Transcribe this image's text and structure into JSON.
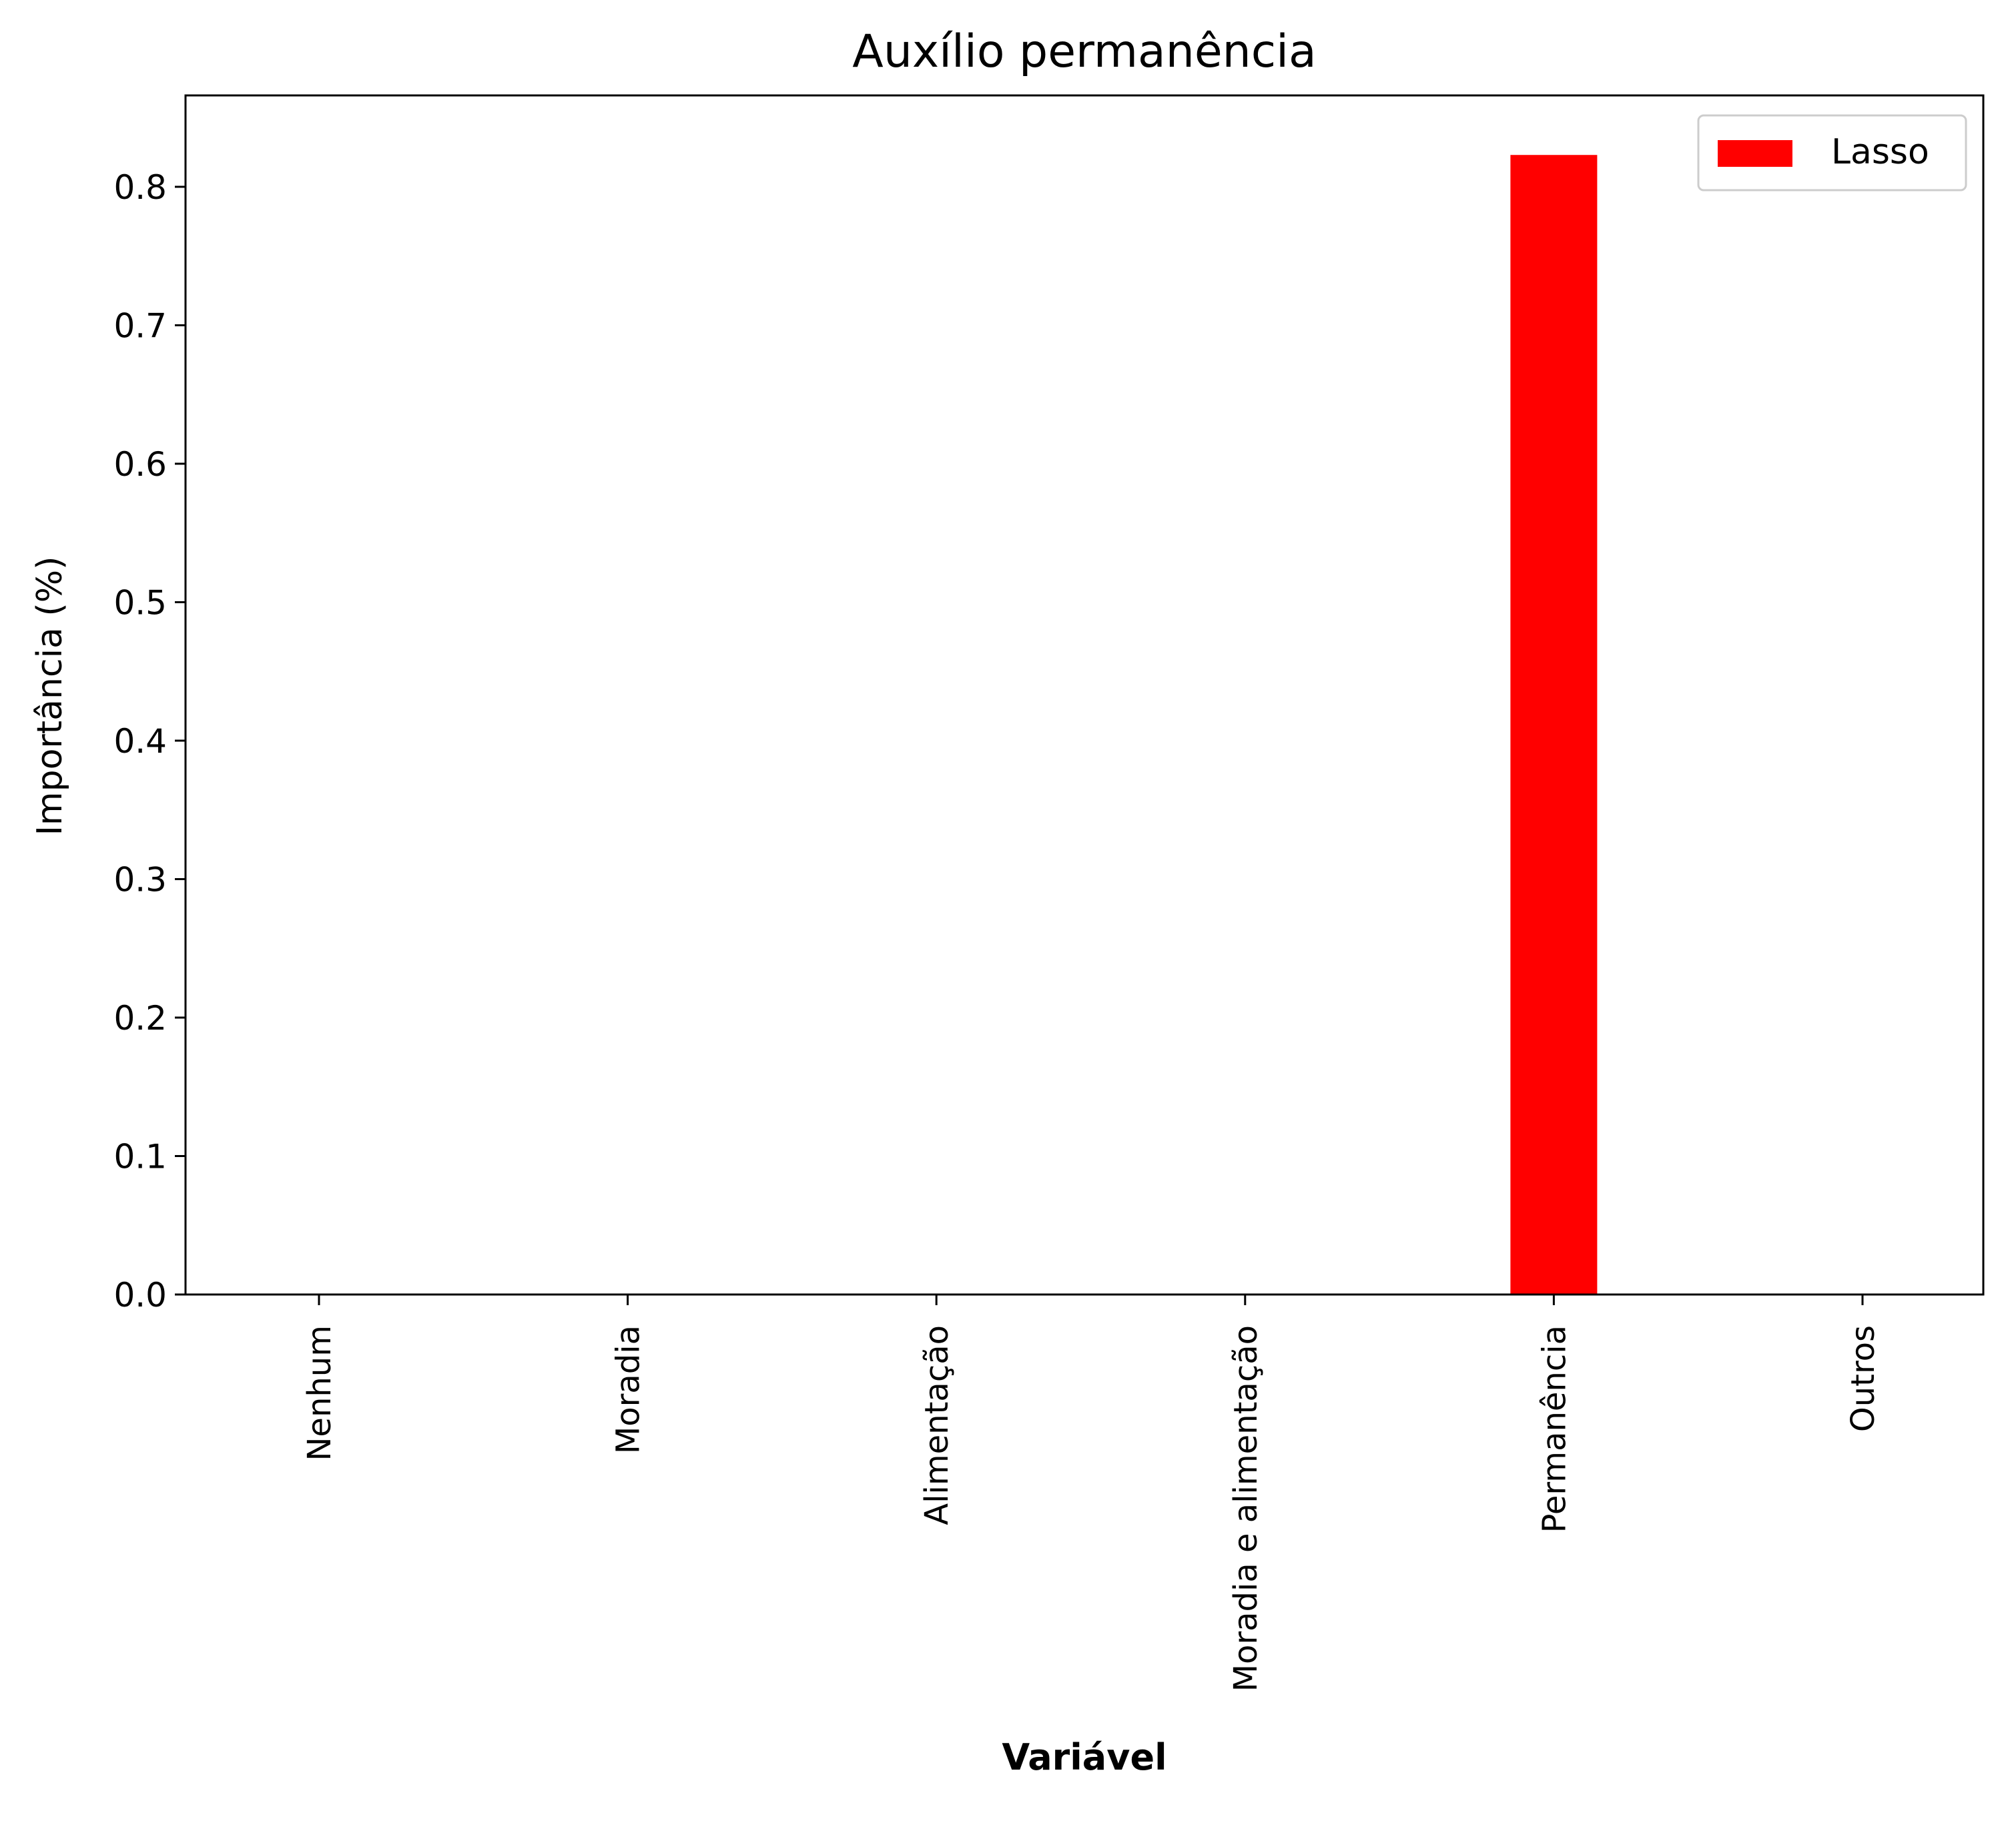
{
  "chart_data": {
    "type": "bar",
    "title": "Auxílio permanência",
    "xlabel": "Variável",
    "ylabel": "Importância (%)",
    "categories": [
      "Nenhum",
      "Moradia",
      "Alimentação",
      "Moradia e alimentação",
      "Permanência",
      "Outros"
    ],
    "series": [
      {
        "name": "Lasso",
        "color": "#ff0000",
        "values": [
          0.0,
          0.0,
          0.0,
          0.0,
          0.823,
          0.0
        ]
      }
    ],
    "ylim": [
      0,
      0.866
    ],
    "yticks": [
      "0.0",
      "0.1",
      "0.2",
      "0.3",
      "0.4",
      "0.5",
      "0.6",
      "0.7",
      "0.8"
    ],
    "grid": false,
    "legend_position": "top-right"
  }
}
